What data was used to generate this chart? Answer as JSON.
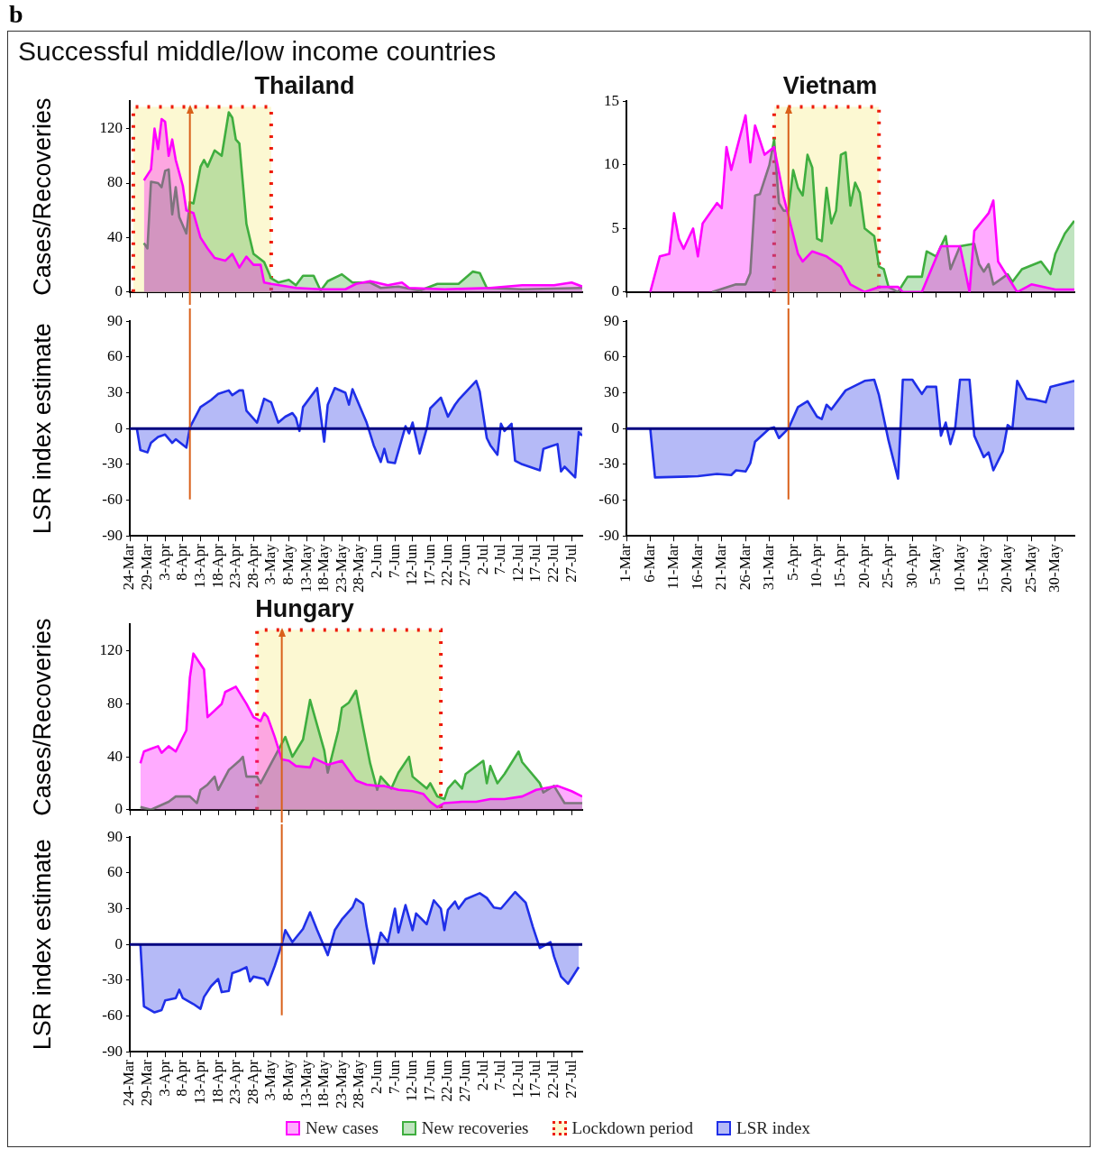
{
  "chart_data": [
    {
      "type": "other",
      "title": "Successful middle/low income countries",
      "annotations": [
        "b"
      ]
    },
    {
      "type": "area",
      "title": "Thailand",
      "ylabel": "Cases/Recoveries",
      "legend": "bottom",
      "tick_labels": "y",
      "xlim": [
        "--03-24",
        "--07-30"
      ],
      "ylim": [
        0,
        140
      ],
      "yticks": [
        0,
        40,
        80,
        120
      ],
      "xticks": [
        {
          "value": "--03-24",
          "label": "24-Mar"
        },
        {
          "value": "--03-29",
          "label": "29-Mar"
        },
        {
          "value": "--04-03",
          "label": "3-Apr"
        },
        {
          "value": "--04-08",
          "label": "8-Apr"
        },
        {
          "value": "--04-13",
          "label": "13-Apr"
        },
        {
          "value": "--04-18",
          "label": "18-Apr"
        },
        {
          "value": "--04-23",
          "label": "23-Apr"
        },
        {
          "value": "--04-28",
          "label": "28-Apr"
        },
        {
          "value": "--05-03",
          "label": "3-May"
        },
        {
          "value": "--05-08",
          "label": "8-May"
        },
        {
          "value": "--05-13",
          "label": "13-May"
        },
        {
          "value": "--05-18",
          "label": "18-May"
        },
        {
          "value": "--05-23",
          "label": "23-May"
        },
        {
          "value": "--05-28",
          "label": "28-May"
        },
        {
          "value": "--06-02",
          "label": "2-Jun"
        },
        {
          "value": "--06-07",
          "label": "7-Jun"
        },
        {
          "value": "--06-12",
          "label": "12-Jun"
        },
        {
          "value": "--06-17",
          "label": "17-Jun"
        },
        {
          "value": "--06-22",
          "label": "22-Jun"
        },
        {
          "value": "--06-27",
          "label": "27-Jun"
        },
        {
          "value": "--07-02",
          "label": "2-Jul"
        },
        {
          "value": "--07-07",
          "label": "7-Jul"
        },
        {
          "value": "--07-12",
          "label": "12-Jul"
        },
        {
          "value": "--07-17",
          "label": "17-Jul"
        },
        {
          "value": "--07-22",
          "label": "22-Jul"
        },
        {
          "value": "--07-27",
          "label": "27-Jul"
        }
      ],
      "bands": [
        {
          "axis": "x",
          "from": "--03-25",
          "to": "--05-03",
          "label": "Lockdown period",
          "color": "#fcf8d2"
        }
      ],
      "ref_lines": [
        {
          "axis": "x",
          "value": "--04-10",
          "color": "#d9601a"
        }
      ],
      "series": [
        {
          "name": "New cases",
          "color": "#ff00ff",
          "x": [
            "--03-28",
            "--03-30",
            "--03-31",
            "--04-01",
            "--04-02",
            "--04-03",
            "--04-04",
            "--04-05",
            "--04-06",
            "--04-08",
            "--04-09",
            "--04-11",
            "--04-13",
            "--04-15",
            "--04-17",
            "--04-20",
            "--04-22",
            "--04-24",
            "--04-26",
            "--04-28",
            "--04-30",
            "--05-01",
            "--05-03",
            "--05-10",
            "--05-17",
            "--05-24",
            "--05-27",
            "--05-31",
            "--06-05",
            "--06-09",
            "--06-11",
            "--06-21",
            "--07-04",
            "--07-13",
            "--07-22",
            "--07-27",
            "--07-30"
          ],
          "values": [
            82,
            90,
            120,
            105,
            127,
            125,
            100,
            112,
            97,
            78,
            60,
            58,
            40,
            32,
            25,
            23,
            28,
            18,
            26,
            20,
            20,
            7,
            6,
            3,
            2,
            2,
            6,
            8,
            5,
            7,
            3,
            2,
            3,
            5,
            5,
            7,
            4
          ]
        },
        {
          "name": "New recoveries",
          "color": "#3fae3f",
          "x": [
            "--03-28",
            "--03-29",
            "--03-30",
            "--04-01",
            "--04-02",
            "--04-03",
            "--04-04",
            "--04-05",
            "--04-06",
            "--04-07",
            "--04-09",
            "--04-10",
            "--04-11",
            "--04-13",
            "--04-14",
            "--04-15",
            "--04-17",
            "--04-19",
            "--04-21",
            "--04-22",
            "--04-23",
            "--04-24",
            "--04-26",
            "--04-28",
            "--05-01",
            "--05-03",
            "--05-05",
            "--05-08",
            "--05-10",
            "--05-12",
            "--05-15",
            "--05-17",
            "--05-19",
            "--05-23",
            "--05-26",
            "--05-31",
            "--06-03",
            "--06-08",
            "--06-14",
            "--06-19",
            "--06-25",
            "--06-29",
            "--07-01",
            "--07-03",
            "--07-13",
            "--07-30"
          ],
          "values": [
            36,
            32,
            81,
            80,
            77,
            89,
            90,
            57,
            77,
            55,
            43,
            66,
            65,
            92,
            97,
            92,
            104,
            100,
            132,
            128,
            112,
            109,
            50,
            28,
            22,
            10,
            7,
            9,
            5,
            12,
            12,
            1,
            8,
            13,
            7,
            7,
            3,
            4,
            1,
            6,
            6,
            15,
            14,
            3,
            2,
            3
          ]
        }
      ]
    },
    {
      "type": "area",
      "ylabel": "LSR index estimate",
      "legend": "bottom",
      "xlim": [
        "--03-24",
        "--07-30"
      ],
      "ylim": [
        -90,
        90
      ],
      "yticks": [
        -90,
        -60,
        -30,
        0,
        30,
        60,
        90
      ],
      "xticks": [
        {
          "value": "--03-24",
          "label": "24-Mar"
        },
        {
          "value": "--03-29",
          "label": "29-Mar"
        },
        {
          "value": "--04-03",
          "label": "3-Apr"
        },
        {
          "value": "--04-08",
          "label": "8-Apr"
        },
        {
          "value": "--04-13",
          "label": "13-Apr"
        },
        {
          "value": "--04-18",
          "label": "18-Apr"
        },
        {
          "value": "--04-23",
          "label": "23-Apr"
        },
        {
          "value": "--04-28",
          "label": "28-Apr"
        },
        {
          "value": "--05-03",
          "label": "3-May"
        },
        {
          "value": "--05-08",
          "label": "8-May"
        },
        {
          "value": "--05-13",
          "label": "13-May"
        },
        {
          "value": "--05-18",
          "label": "18-May"
        },
        {
          "value": "--05-23",
          "label": "23-May"
        },
        {
          "value": "--05-28",
          "label": "28-May"
        },
        {
          "value": "--06-02",
          "label": "2-Jun"
        },
        {
          "value": "--06-07",
          "label": "7-Jun"
        },
        {
          "value": "--06-12",
          "label": "12-Jun"
        },
        {
          "value": "--06-17",
          "label": "17-Jun"
        },
        {
          "value": "--06-22",
          "label": "22-Jun"
        },
        {
          "value": "--06-27",
          "label": "27-Jun"
        },
        {
          "value": "--07-02",
          "label": "2-Jul"
        },
        {
          "value": "--07-07",
          "label": "7-Jul"
        },
        {
          "value": "--07-12",
          "label": "12-Jul"
        },
        {
          "value": "--07-17",
          "label": "17-Jul"
        },
        {
          "value": "--07-22",
          "label": "22-Jul"
        },
        {
          "value": "--07-27",
          "label": "27-Jul"
        }
      ],
      "ref_lines": [
        {
          "axis": "x",
          "value": "--04-10",
          "color": "#d9601a"
        },
        {
          "axis": "y",
          "value": 0,
          "color": "#000080"
        }
      ],
      "series": [
        {
          "name": "LSR index",
          "color": "#1f2fe8",
          "x": [
            "--03-26",
            "--03-27",
            "--03-29",
            "--03-30",
            "--04-01",
            "--04-03",
            "--04-05",
            "--04-06",
            "--04-09",
            "--04-10",
            "--04-13",
            "--04-16",
            "--04-18",
            "--04-21",
            "--04-22",
            "--04-24",
            "--04-25",
            "--04-26",
            "--04-29",
            "--05-01",
            "--05-03",
            "--05-05",
            "--05-07",
            "--05-09",
            "--05-10",
            "--05-11",
            "--05-12",
            "--05-16",
            "--05-18",
            "--05-19",
            "--05-21",
            "--05-24",
            "--05-25",
            "--05-26",
            "--05-30",
            "--06-01",
            "--06-03",
            "--06-04",
            "--06-05",
            "--06-07",
            "--06-10",
            "--06-11",
            "--06-12",
            "--06-14",
            "--06-16",
            "--06-17",
            "--06-20",
            "--06-22",
            "--06-24",
            "--06-25",
            "--06-30",
            "--07-01",
            "--07-03",
            "--07-04",
            "--07-06",
            "--07-07",
            "--07-08",
            "--07-10",
            "--07-11",
            "--07-13",
            "--07-18",
            "--07-19",
            "--07-21",
            "--07-23",
            "--07-24",
            "--07-25",
            "--07-28",
            "--07-29",
            "--07-30"
          ],
          "values": [
            0,
            -18,
            -20,
            -12,
            -7,
            -5,
            -12,
            -9,
            -16,
            1,
            18,
            24,
            29,
            32,
            28,
            32,
            32,
            15,
            5,
            25,
            22,
            5,
            10,
            13,
            9,
            -2,
            18,
            34,
            -11,
            20,
            34,
            30,
            20,
            33,
            5,
            -14,
            -28,
            -17,
            -28,
            -29,
            2,
            -4,
            5,
            -21,
            0,
            17,
            26,
            10,
            20,
            24,
            40,
            31,
            -8,
            -14,
            -22,
            4,
            -2,
            4,
            -27,
            -30,
            -35,
            -17,
            -15,
            -13,
            -36,
            -32,
            -41,
            -3,
            -6
          ]
        }
      ]
    },
    {
      "type": "area",
      "title": "Vietnam",
      "tick_labels": "y",
      "xlim": [
        "--03-01",
        "--06-03"
      ],
      "ylim": [
        0,
        15
      ],
      "yticks": [
        0,
        5,
        10,
        15
      ],
      "xticks": [
        {
          "value": "--03-01",
          "label": "1-Mar"
        },
        {
          "value": "--03-06",
          "label": "6-Mar"
        },
        {
          "value": "--03-11",
          "label": "11-Mar"
        },
        {
          "value": "--03-16",
          "label": "16-Mar"
        },
        {
          "value": "--03-21",
          "label": "21-Mar"
        },
        {
          "value": "--03-26",
          "label": "26-Mar"
        },
        {
          "value": "--03-31",
          "label": "31-Mar"
        },
        {
          "value": "--04-05",
          "label": "5-Apr"
        },
        {
          "value": "--04-10",
          "label": "10-Apr"
        },
        {
          "value": "--04-15",
          "label": "15-Apr"
        },
        {
          "value": "--04-20",
          "label": "20-Apr"
        },
        {
          "value": "--04-25",
          "label": "25-Apr"
        },
        {
          "value": "--04-30",
          "label": "30-Apr"
        },
        {
          "value": "--05-05",
          "label": "5-May"
        },
        {
          "value": "--05-10",
          "label": "10-May"
        },
        {
          "value": "--05-15",
          "label": "15-May"
        },
        {
          "value": "--05-20",
          "label": "20-May"
        },
        {
          "value": "--05-25",
          "label": "25-May"
        },
        {
          "value": "--05-30",
          "label": "30-May"
        }
      ],
      "bands": [
        {
          "axis": "x",
          "from": "--04-01",
          "to": "--04-23",
          "color": "#fcf8d2"
        }
      ],
      "ref_lines": [
        {
          "axis": "x",
          "value": "--04-04",
          "color": "#d9601a"
        }
      ],
      "series": [
        {
          "color": "#ff00ff",
          "x": [
            "--03-06",
            "--03-08",
            "--03-10",
            "--03-11",
            "--03-12",
            "--03-13",
            "--03-15",
            "--03-16",
            "--03-17",
            "--03-20",
            "--03-21",
            "--03-22",
            "--03-23",
            "--03-26",
            "--03-27",
            "--03-28",
            "--03-30",
            "--04-01",
            "--04-03",
            "--04-04",
            "--04-06",
            "--04-07",
            "--04-09",
            "--04-12",
            "--04-15",
            "--04-17",
            "--04-20",
            "--04-23",
            "--04-27",
            "--04-28",
            "--05-02",
            "--05-06",
            "--05-10",
            "--05-12",
            "--05-13",
            "--05-16",
            "--05-17",
            "--05-18",
            "--05-22",
            "--05-25",
            "--05-30",
            "--06-03"
          ],
          "values": [
            0,
            2.8,
            3,
            6.2,
            4.2,
            3.4,
            5,
            2.8,
            5.4,
            7,
            6.6,
            11.4,
            9.6,
            13.9,
            10.2,
            13.1,
            10.8,
            11.4,
            7.5,
            6,
            3,
            2.4,
            3.2,
            2.8,
            2,
            0.6,
            0,
            0.4,
            0.4,
            0,
            0,
            3.6,
            3.6,
            0,
            4.8,
            6.2,
            7.2,
            2.4,
            0,
            0.6,
            0.2,
            0.2
          ]
        },
        {
          "color": "#3fae3f",
          "x": [
            "--03-19",
            "--03-24",
            "--03-26",
            "--03-27",
            "--03-28",
            "--03-29",
            "--03-31",
            "--04-01",
            "--04-02",
            "--04-03",
            "--04-04",
            "--04-05",
            "--04-06",
            "--04-07",
            "--04-08",
            "--04-09",
            "--04-10",
            "--04-11",
            "--04-12",
            "--04-13",
            "--04-14",
            "--04-15",
            "--04-16",
            "--04-17",
            "--04-18",
            "--04-19",
            "--04-20",
            "--04-22",
            "--04-23",
            "--04-24",
            "--04-25",
            "--04-27",
            "--04-29",
            "--05-02",
            "--05-03",
            "--05-05",
            "--05-07",
            "--05-08",
            "--05-10",
            "--05-13",
            "--05-14",
            "--05-15",
            "--05-16",
            "--05-17",
            "--05-20",
            "--05-21",
            "--05-23",
            "--05-27",
            "--05-29",
            "--05-30",
            "--06-01",
            "--06-03"
          ],
          "values": [
            0,
            0.6,
            0.6,
            1.5,
            7.6,
            7.7,
            10,
            12,
            7,
            6.4,
            6.4,
            9.6,
            8.2,
            7.6,
            10.8,
            9.8,
            4.2,
            4,
            8.2,
            5.4,
            6.4,
            10.8,
            11,
            6.8,
            8.6,
            7.8,
            5,
            4.4,
            2,
            1.8,
            0.4,
            0,
            1.2,
            1.2,
            3.2,
            2.8,
            4.4,
            1.8,
            3.6,
            3.8,
            2.2,
            1.6,
            2.2,
            0.6,
            1.4,
            0.8,
            1.8,
            2.4,
            1.4,
            3,
            4.6,
            5.6
          ]
        }
      ]
    },
    {
      "type": "area",
      "xlim": [
        "--03-01",
        "--06-03"
      ],
      "ylim": [
        -90,
        90
      ],
      "yticks": [
        -90,
        -60,
        -30,
        0,
        30,
        60,
        90
      ],
      "xticks": [
        {
          "value": "--03-01",
          "label": "1-Mar"
        },
        {
          "value": "--03-06",
          "label": "6-Mar"
        },
        {
          "value": "--03-11",
          "label": "11-Mar"
        },
        {
          "value": "--03-16",
          "label": "16-Mar"
        },
        {
          "value": "--03-21",
          "label": "21-Mar"
        },
        {
          "value": "--03-26",
          "label": "26-Mar"
        },
        {
          "value": "--03-31",
          "label": "31-Mar"
        },
        {
          "value": "--04-05",
          "label": "5-Apr"
        },
        {
          "value": "--04-10",
          "label": "10-Apr"
        },
        {
          "value": "--04-15",
          "label": "15-Apr"
        },
        {
          "value": "--04-20",
          "label": "20-Apr"
        },
        {
          "value": "--04-25",
          "label": "25-Apr"
        },
        {
          "value": "--04-30",
          "label": "30-Apr"
        },
        {
          "value": "--05-05",
          "label": "5-May"
        },
        {
          "value": "--05-10",
          "label": "10-May"
        },
        {
          "value": "--05-15",
          "label": "15-May"
        },
        {
          "value": "--05-20",
          "label": "20-May"
        },
        {
          "value": "--05-25",
          "label": "25-May"
        },
        {
          "value": "--05-30",
          "label": "30-May"
        }
      ],
      "ref_lines": [
        {
          "axis": "x",
          "value": "--04-04",
          "color": "#d9601a"
        },
        {
          "axis": "y",
          "value": 0,
          "color": "#000080"
        }
      ],
      "series": [
        {
          "color": "#1f2fe8",
          "x": [
            "--03-06",
            "--03-07",
            "--03-16",
            "--03-20",
            "--03-23",
            "--03-24",
            "--03-26",
            "--03-27",
            "--03-28",
            "--03-31",
            "--04-01",
            "--04-02",
            "--04-04",
            "--04-06",
            "--04-08",
            "--04-10",
            "--04-11",
            "--04-12",
            "--04-13",
            "--04-16",
            "--04-20",
            "--04-22",
            "--04-23",
            "--04-25",
            "--04-27",
            "--04-28",
            "--04-30",
            "--05-02",
            "--05-03",
            "--05-05",
            "--05-06",
            "--05-07",
            "--05-08",
            "--05-09",
            "--05-10",
            "--05-12",
            "--05-13",
            "--05-15",
            "--05-16",
            "--05-17",
            "--05-19",
            "--05-20",
            "--05-21",
            "--05-22",
            "--05-24",
            "--05-26",
            "--05-28",
            "--05-29",
            "--05-31",
            "--06-03"
          ],
          "values": [
            0,
            -41,
            -40,
            -38,
            -39,
            -35,
            -36,
            -29,
            -11,
            0,
            1,
            -8,
            0,
            18,
            23,
            10,
            8,
            20,
            16,
            32,
            40,
            41,
            28,
            -10,
            -42,
            41,
            41,
            29,
            35,
            35,
            -6,
            5,
            -13,
            1,
            41,
            41,
            -6,
            -24,
            -20,
            -35,
            -19,
            3,
            0,
            40,
            25,
            24,
            22,
            35,
            37,
            40
          ]
        }
      ]
    },
    {
      "type": "area",
      "title": "Hungary",
      "ylabel": "Cases/Recoveries",
      "tick_labels": "y",
      "xlim": [
        "--03-24",
        "--07-30"
      ],
      "ylim": [
        0,
        140
      ],
      "yticks": [
        0,
        40,
        80,
        120
      ],
      "xticks": [
        {
          "value": "--03-24",
          "label": "24-Mar"
        },
        {
          "value": "--03-29",
          "label": "29-Mar"
        },
        {
          "value": "--04-03",
          "label": "3-Apr"
        },
        {
          "value": "--04-08",
          "label": "8-Apr"
        },
        {
          "value": "--04-13",
          "label": "13-Apr"
        },
        {
          "value": "--04-18",
          "label": "18-Apr"
        },
        {
          "value": "--04-23",
          "label": "23-Apr"
        },
        {
          "value": "--04-28",
          "label": "28-Apr"
        },
        {
          "value": "--05-03",
          "label": "3-May"
        },
        {
          "value": "--05-08",
          "label": "8-May"
        },
        {
          "value": "--05-13",
          "label": "13-May"
        },
        {
          "value": "--05-18",
          "label": "18-May"
        },
        {
          "value": "--05-23",
          "label": "23-May"
        },
        {
          "value": "--05-28",
          "label": "28-May"
        },
        {
          "value": "--06-02",
          "label": "2-Jun"
        },
        {
          "value": "--06-07",
          "label": "7-Jun"
        },
        {
          "value": "--06-12",
          "label": "12-Jun"
        },
        {
          "value": "--06-17",
          "label": "17-Jun"
        },
        {
          "value": "--06-22",
          "label": "22-Jun"
        },
        {
          "value": "--06-27",
          "label": "27-Jun"
        },
        {
          "value": "--07-02",
          "label": "2-Jul"
        },
        {
          "value": "--07-07",
          "label": "7-Jul"
        },
        {
          "value": "--07-12",
          "label": "12-Jul"
        },
        {
          "value": "--07-17",
          "label": "17-Jul"
        },
        {
          "value": "--07-22",
          "label": "22-Jul"
        },
        {
          "value": "--07-27",
          "label": "27-Jul"
        }
      ],
      "bands": [
        {
          "axis": "x",
          "from": "--04-29",
          "to": "--06-20",
          "color": "#fcf8d2"
        }
      ],
      "ref_lines": [
        {
          "axis": "x",
          "value": "--05-06",
          "color": "#d9601a"
        }
      ],
      "series": [
        {
          "color": "#ff00ff",
          "x": [
            "--03-27",
            "--03-28",
            "--03-30",
            "--04-01",
            "--04-02",
            "--04-04",
            "--04-06",
            "--04-09",
            "--04-10",
            "--04-11",
            "--04-14",
            "--04-15",
            "--04-19",
            "--04-20",
            "--04-23",
            "--04-26",
            "--04-28",
            "--04-30",
            "--05-01",
            "--05-02",
            "--05-04",
            "--05-06",
            "--05-08",
            "--05-10",
            "--05-14",
            "--05-15",
            "--05-19",
            "--05-23",
            "--05-27",
            "--05-30",
            "--06-02",
            "--06-04",
            "--06-08",
            "--06-12",
            "--06-15",
            "--06-17",
            "--06-19",
            "--06-21",
            "--06-26",
            "--06-30",
            "--07-04",
            "--07-08",
            "--07-13",
            "--07-17",
            "--07-23",
            "--07-27",
            "--07-30"
          ],
          "values": [
            35,
            44,
            46,
            48,
            43,
            48,
            44,
            60,
            100,
            118,
            106,
            70,
            80,
            89,
            93,
            80,
            70,
            67,
            73,
            70,
            55,
            38,
            37,
            33,
            32,
            39,
            34,
            37,
            22,
            19,
            18,
            18,
            15,
            14,
            12,
            6,
            2,
            5,
            6,
            6,
            8,
            8,
            10,
            15,
            18,
            14,
            10
          ]
        },
        {
          "color": "#3fae3f",
          "x": [
            "--03-27",
            "--03-30",
            "--04-04",
            "--04-06",
            "--04-10",
            "--04-12",
            "--04-13",
            "--04-15",
            "--04-17",
            "--04-18",
            "--04-21",
            "--04-24",
            "--04-25",
            "--04-26",
            "--04-29",
            "--04-30",
            "--05-03",
            "--05-07",
            "--05-09",
            "--05-12",
            "--05-14",
            "--05-18",
            "--05-19",
            "--05-22",
            "--05-23",
            "--05-25",
            "--05-27",
            "--05-29",
            "--05-31",
            "--06-02",
            "--06-03",
            "--06-06",
            "--06-08",
            "--06-11",
            "--06-12",
            "--06-16",
            "--06-17",
            "--06-19",
            "--06-21",
            "--06-22",
            "--06-24",
            "--06-26",
            "--06-27",
            "--07-02",
            "--07-03",
            "--07-04",
            "--07-06",
            "--07-08",
            "--07-12",
            "--07-13",
            "--07-18",
            "--07-19",
            "--07-22",
            "--07-25",
            "--07-30"
          ],
          "values": [
            2,
            0,
            6,
            10,
            10,
            5,
            15,
            19,
            25,
            15,
            30,
            37,
            40,
            25,
            25,
            20,
            35,
            55,
            40,
            53,
            83,
            45,
            28,
            60,
            77,
            81,
            90,
            62,
            35,
            15,
            25,
            16,
            28,
            40,
            25,
            16,
            20,
            10,
            8,
            16,
            22,
            16,
            27,
            37,
            20,
            33,
            20,
            27,
            44,
            36,
            20,
            13,
            18,
            5,
            5
          ]
        }
      ]
    },
    {
      "type": "area",
      "ylabel": "LSR index estimate",
      "xlim": [
        "--03-24",
        "--07-30"
      ],
      "ylim": [
        -90,
        90
      ],
      "yticks": [
        -90,
        -60,
        -30,
        0,
        30,
        60,
        90
      ],
      "xticks": [
        {
          "value": "--03-24",
          "label": "24-Mar"
        },
        {
          "value": "--03-29",
          "label": "29-Mar"
        },
        {
          "value": "--04-03",
          "label": "3-Apr"
        },
        {
          "value": "--04-08",
          "label": "8-Apr"
        },
        {
          "value": "--04-13",
          "label": "13-Apr"
        },
        {
          "value": "--04-18",
          "label": "18-Apr"
        },
        {
          "value": "--04-23",
          "label": "23-Apr"
        },
        {
          "value": "--04-28",
          "label": "28-Apr"
        },
        {
          "value": "--05-03",
          "label": "3-May"
        },
        {
          "value": "--05-08",
          "label": "8-May"
        },
        {
          "value": "--05-13",
          "label": "13-May"
        },
        {
          "value": "--05-18",
          "label": "18-May"
        },
        {
          "value": "--05-23",
          "label": "23-May"
        },
        {
          "value": "--05-28",
          "label": "28-May"
        },
        {
          "value": "--06-02",
          "label": "2-Jun"
        },
        {
          "value": "--06-07",
          "label": "7-Jun"
        },
        {
          "value": "--06-12",
          "label": "12-Jun"
        },
        {
          "value": "--06-17",
          "label": "17-Jun"
        },
        {
          "value": "--06-22",
          "label": "22-Jun"
        },
        {
          "value": "--06-27",
          "label": "27-Jun"
        },
        {
          "value": "--07-02",
          "label": "2-Jul"
        },
        {
          "value": "--07-07",
          "label": "7-Jul"
        },
        {
          "value": "--07-12",
          "label": "12-Jul"
        },
        {
          "value": "--07-17",
          "label": "17-Jul"
        },
        {
          "value": "--07-22",
          "label": "22-Jul"
        },
        {
          "value": "--07-27",
          "label": "27-Jul"
        }
      ],
      "ref_lines": [
        {
          "axis": "x",
          "value": "--05-06",
          "color": "#d9601a"
        },
        {
          "axis": "y",
          "value": 0,
          "color": "#000080"
        }
      ],
      "series": [
        {
          "color": "#1f2fe8",
          "x": [
            "--03-27",
            "--03-28",
            "--03-31",
            "--04-02",
            "--04-03",
            "--04-06",
            "--04-07",
            "--04-08",
            "--04-11",
            "--04-13",
            "--04-14",
            "--04-16",
            "--04-18",
            "--04-19",
            "--04-21",
            "--04-22",
            "--04-24",
            "--04-26",
            "--04-27",
            "--04-28",
            "--05-01",
            "--05-02",
            "--05-04",
            "--05-06",
            "--05-07",
            "--05-09",
            "--05-12",
            "--05-14",
            "--05-16",
            "--05-19",
            "--05-21",
            "--05-23",
            "--05-26",
            "--05-27",
            "--05-29",
            "--05-30",
            "--06-01",
            "--06-03",
            "--06-05",
            "--06-07",
            "--06-08",
            "--06-10",
            "--06-12",
            "--06-13",
            "--06-16",
            "--06-18",
            "--06-20",
            "--06-21",
            "--06-22",
            "--06-24",
            "--06-25",
            "--06-27",
            "--07-01",
            "--07-03",
            "--07-05",
            "--07-07",
            "--07-11",
            "--07-14",
            "--07-16",
            "--07-18",
            "--07-21",
            "--07-22",
            "--07-24",
            "--07-26",
            "--07-29"
          ],
          "values": [
            0,
            -52,
            -57,
            -55,
            -47,
            -45,
            -38,
            -45,
            -50,
            -54,
            -44,
            -35,
            -29,
            -40,
            -39,
            -24,
            -22,
            -19,
            -31,
            -27,
            -29,
            -34,
            -18,
            0,
            12,
            2,
            13,
            27,
            12,
            -9,
            12,
            21,
            31,
            38,
            34,
            15,
            -16,
            10,
            2,
            30,
            10,
            33,
            12,
            26,
            17,
            37,
            30,
            12,
            29,
            36,
            30,
            38,
            43,
            39,
            31,
            30,
            44,
            35,
            15,
            -3,
            2,
            -10,
            -27,
            -33,
            -19
          ]
        }
      ]
    }
  ]
}
